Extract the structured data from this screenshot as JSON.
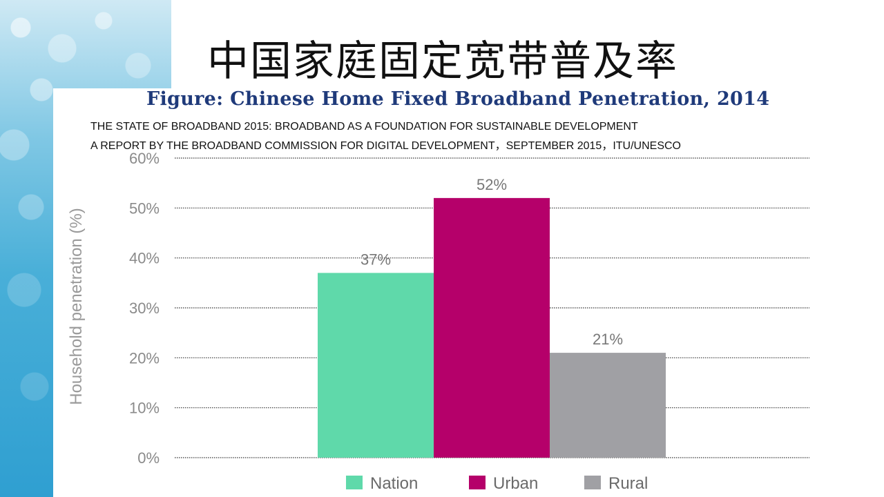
{
  "slide": {
    "title": "中国家庭固定宽带普及率"
  },
  "figure": {
    "title": "Figure: Chinese Home Fixed Broadband Penetration, 2014",
    "source_line1": "THE STATE OF BROADBAND 2015: BROADBAND AS A FOUNDATION FOR SUSTAINABLE DEVELOPMENT",
    "source_line2": "A REPORT BY THE BROADBAND COMMISSION FOR DIGITAL DEVELOPMENT，SEPTEMBER 2015，ITU/UNESCO"
  },
  "chart_data": {
    "type": "bar",
    "title": "Figure: Chinese Home Fixed Broadband Penetration, 2014",
    "xlabel": "",
    "ylabel": "Household penetration (%)",
    "ylim": [
      0,
      60
    ],
    "yticks": [
      0,
      10,
      20,
      30,
      40,
      50,
      60
    ],
    "ytick_labels": [
      "0%",
      "10%",
      "20%",
      "30%",
      "40%",
      "50%",
      "60%"
    ],
    "grid": true,
    "legend": "bottom",
    "categories": [
      "Nation",
      "Urban",
      "Rural"
    ],
    "values": [
      37,
      52,
      21
    ],
    "data_labels": [
      "37%",
      "52%",
      "21%"
    ],
    "colors": [
      "#5fd9aa",
      "#b5006a",
      "#a0a0a4"
    ]
  }
}
